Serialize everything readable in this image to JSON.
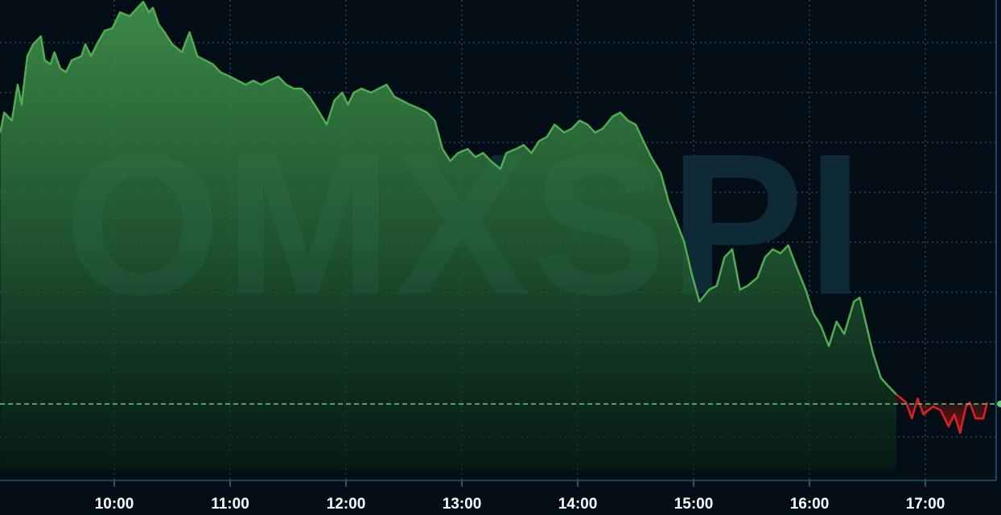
{
  "watermark": "OMXSPI",
  "colors": {
    "background": "#020d16",
    "up": "#4caf50",
    "down": "#e02020",
    "grid": "#1a5a78",
    "reference": "#5fd07a"
  },
  "chart_data": {
    "type": "area",
    "title": "",
    "xlabel": "",
    "ylabel": "",
    "y_axis_labels_shown": false,
    "y_units": "relative to reference line (grid steps)",
    "reference_line": {
      "value": 0,
      "style": "dashed",
      "color": "#5fd07a"
    },
    "xlim": [
      "09:00",
      "17:36"
    ],
    "ylim": [
      -1.53,
      8.1
    ],
    "grid": true,
    "x_ticks": [
      "10:00",
      "11:00",
      "12:00",
      "13:00",
      "14:00",
      "15:00",
      "16:00",
      "17:00"
    ],
    "series": [
      {
        "x": [
          "09:01",
          "09:03",
          "09:07",
          "09:10",
          "09:12",
          "09:15",
          "09:18",
          "09:22",
          "09:24",
          "09:27",
          "09:29",
          "09:32",
          "09:35",
          "09:38",
          "09:43",
          "09:45",
          "09:48",
          "09:51",
          "09:55",
          "09:59",
          "10:03",
          "10:08",
          "10:12",
          "10:15",
          "10:18",
          "10:20",
          "10:23",
          "10:26",
          "10:30",
          "10:35",
          "10:39",
          "10:43",
          "10:47",
          "10:51",
          "10:55",
          "11:00",
          "11:04",
          "11:08",
          "11:12",
          "11:16",
          "11:20",
          "11:25",
          "11:29",
          "11:33",
          "11:37",
          "11:41",
          "11:45",
          "11:50",
          "11:54",
          "11:58",
          "12:01",
          "12:04",
          "12:08",
          "12:13",
          "12:17",
          "12:21",
          "12:25",
          "12:29",
          "12:33",
          "12:38",
          "12:42",
          "12:46",
          "12:50",
          "12:54",
          "12:58",
          "13:03",
          "13:07",
          "13:11",
          "13:15",
          "13:20",
          "13:23",
          "13:28",
          "13:32",
          "13:36",
          "13:40",
          "13:44",
          "13:48",
          "13:53",
          "13:57",
          "14:01",
          "14:05",
          "14:09",
          "14:13",
          "14:18",
          "14:22",
          "14:26",
          "14:30",
          "14:34",
          "14:38",
          "14:43",
          "14:47",
          "14:51",
          "14:55",
          "14:59",
          "15:03",
          "15:08",
          "15:12",
          "15:16",
          "15:20",
          "15:24",
          "15:28",
          "15:33",
          "15:37",
          "15:41",
          "15:45",
          "15:49",
          "15:53",
          "15:58",
          "16:02",
          "16:06",
          "16:10",
          "16:14",
          "16:18",
          "16:23",
          "16:26",
          "16:29",
          "16:33",
          "16:37",
          "16:41",
          "16:45",
          "16:50",
          "16:53",
          "16:56",
          "16:59",
          "17:04",
          "17:08",
          "17:12",
          "17:15",
          "17:18",
          "17:21",
          "17:23",
          "17:26",
          "17:30",
          "17:32"
        ],
        "y": [
          5.44,
          5.84,
          5.68,
          6.4,
          6.0,
          6.97,
          7.21,
          7.37,
          6.89,
          6.81,
          7.05,
          6.73,
          6.65,
          6.89,
          6.97,
          7.21,
          6.97,
          7.21,
          7.48,
          7.53,
          7.85,
          7.77,
          7.94,
          8.06,
          7.85,
          7.94,
          7.61,
          7.45,
          7.21,
          7.05,
          7.45,
          6.97,
          6.89,
          6.81,
          6.65,
          6.56,
          6.48,
          6.4,
          6.48,
          6.4,
          6.48,
          6.56,
          6.4,
          6.32,
          6.32,
          6.16,
          5.92,
          5.6,
          6.08,
          6.24,
          6.0,
          6.24,
          6.32,
          6.24,
          6.32,
          6.4,
          6.16,
          6.08,
          6.0,
          5.92,
          5.84,
          5.68,
          5.11,
          4.87,
          5.03,
          5.11,
          4.95,
          5.03,
          4.87,
          4.71,
          5.03,
          5.11,
          5.19,
          5.03,
          5.27,
          5.35,
          5.6,
          5.44,
          5.52,
          5.68,
          5.6,
          5.44,
          5.52,
          5.76,
          5.84,
          5.68,
          5.6,
          5.27,
          4.95,
          4.63,
          4.06,
          3.66,
          3.26,
          2.61,
          2.05,
          2.29,
          2.37,
          2.94,
          3.1,
          2.29,
          2.37,
          2.53,
          2.94,
          3.1,
          3.02,
          3.18,
          2.77,
          2.29,
          1.81,
          1.56,
          1.16,
          1.65,
          1.4,
          2.05,
          2.13,
          1.65,
          1.0,
          0.52,
          0.35,
          0.19,
          0.03,
          -0.29,
          0.11,
          -0.21,
          -0.05,
          -0.13,
          -0.45,
          -0.21,
          -0.58,
          -0.05,
          0.03,
          -0.29,
          -0.29,
          0.03
        ]
      }
    ],
    "down_from": "16:45"
  }
}
